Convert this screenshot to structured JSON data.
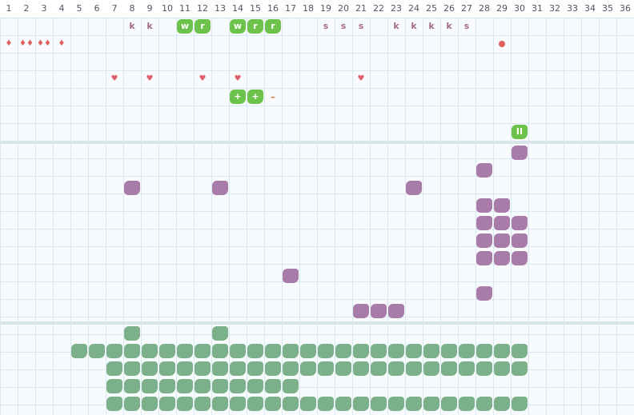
{
  "columns": [
    "1",
    "2",
    "3",
    "4",
    "5",
    "6",
    "7",
    "8",
    "9",
    "10",
    "11",
    "12",
    "13",
    "14",
    "15",
    "16",
    "17",
    "18",
    "19",
    "20",
    "21",
    "22",
    "23",
    "24",
    "25",
    "26",
    "27",
    "28",
    "29",
    "30",
    "31",
    "32",
    "33",
    "34",
    "35",
    "36"
  ],
  "colors": {
    "green": "#6cc24a",
    "purple": "#a87ba8",
    "teal": "#7bb08a",
    "red": "#e06060",
    "letter": "#a56a8a"
  },
  "top_section": {
    "letters": [
      {
        "col": 8,
        "row": 1,
        "text": "k"
      },
      {
        "col": 9,
        "row": 1,
        "text": "k"
      },
      {
        "col": 19,
        "row": 1,
        "text": "s"
      },
      {
        "col": 20,
        "row": 1,
        "text": "s"
      },
      {
        "col": 21,
        "row": 1,
        "text": "s"
      },
      {
        "col": 23,
        "row": 1,
        "text": "k"
      },
      {
        "col": 24,
        "row": 1,
        "text": "k"
      },
      {
        "col": 25,
        "row": 1,
        "text": "k"
      },
      {
        "col": 26,
        "row": 1,
        "text": "k"
      },
      {
        "col": 27,
        "row": 1,
        "text": "s"
      }
    ],
    "green_tiles": [
      {
        "col": 11,
        "row": 1,
        "text": "w"
      },
      {
        "col": 12,
        "row": 1,
        "text": "r"
      },
      {
        "col": 14,
        "row": 1,
        "text": "w"
      },
      {
        "col": 15,
        "row": 1,
        "text": "r"
      },
      {
        "col": 16,
        "row": 1,
        "text": "r"
      },
      {
        "col": 14,
        "row": 5,
        "text": "+"
      },
      {
        "col": 15,
        "row": 5,
        "text": "+"
      },
      {
        "col": 30,
        "row": 7,
        "text": "II"
      }
    ],
    "drops": [
      {
        "col": 1,
        "row": 2,
        "text": "♦"
      },
      {
        "col": 2,
        "row": 2,
        "text": "♦♦"
      },
      {
        "col": 3,
        "row": 2,
        "text": "♦♦"
      },
      {
        "col": 4,
        "row": 2,
        "text": "♦"
      }
    ],
    "hearts": [
      {
        "col": 7,
        "row": 4,
        "text": "♥"
      },
      {
        "col": 9,
        "row": 4,
        "text": "♥"
      },
      {
        "col": 12,
        "row": 4,
        "text": "♥"
      },
      {
        "col": 14,
        "row": 4,
        "text": "♥"
      },
      {
        "col": 21,
        "row": 4,
        "text": "♥"
      }
    ],
    "dots": [
      {
        "col": 29,
        "row": 2
      }
    ],
    "dashes": [
      {
        "col": 16,
        "row": 5,
        "text": "–"
      }
    ]
  },
  "middle_section": {
    "purple_blobs": [
      {
        "col": 30,
        "row": 8
      },
      {
        "col": 28,
        "row": 9
      },
      {
        "col": 8,
        "row": 10
      },
      {
        "col": 13,
        "row": 10
      },
      {
        "col": 24,
        "row": 10
      },
      {
        "col": 28,
        "row": 11
      },
      {
        "col": 29,
        "row": 11
      },
      {
        "col": 28,
        "row": 12
      },
      {
        "col": 29,
        "row": 12
      },
      {
        "col": 30,
        "row": 12
      },
      {
        "col": 28,
        "row": 13
      },
      {
        "col": 29,
        "row": 13
      },
      {
        "col": 30,
        "row": 13
      },
      {
        "col": 28,
        "row": 14
      },
      {
        "col": 29,
        "row": 14
      },
      {
        "col": 30,
        "row": 14
      },
      {
        "col": 17,
        "row": 15
      },
      {
        "col": 28,
        "row": 16
      },
      {
        "col": 21,
        "row": 17
      },
      {
        "col": 22,
        "row": 17
      },
      {
        "col": 23,
        "row": 17
      }
    ]
  },
  "bottom_section": {
    "teal_rows": [
      {
        "row": 18,
        "cols": [
          8,
          13
        ]
      },
      {
        "row": 19,
        "from": 5,
        "to": 30
      },
      {
        "row": 20,
        "from": 7,
        "to": 30
      },
      {
        "row": 21,
        "from": 7,
        "to": 17
      },
      {
        "row": 22,
        "from": 7,
        "to": 30
      }
    ]
  }
}
